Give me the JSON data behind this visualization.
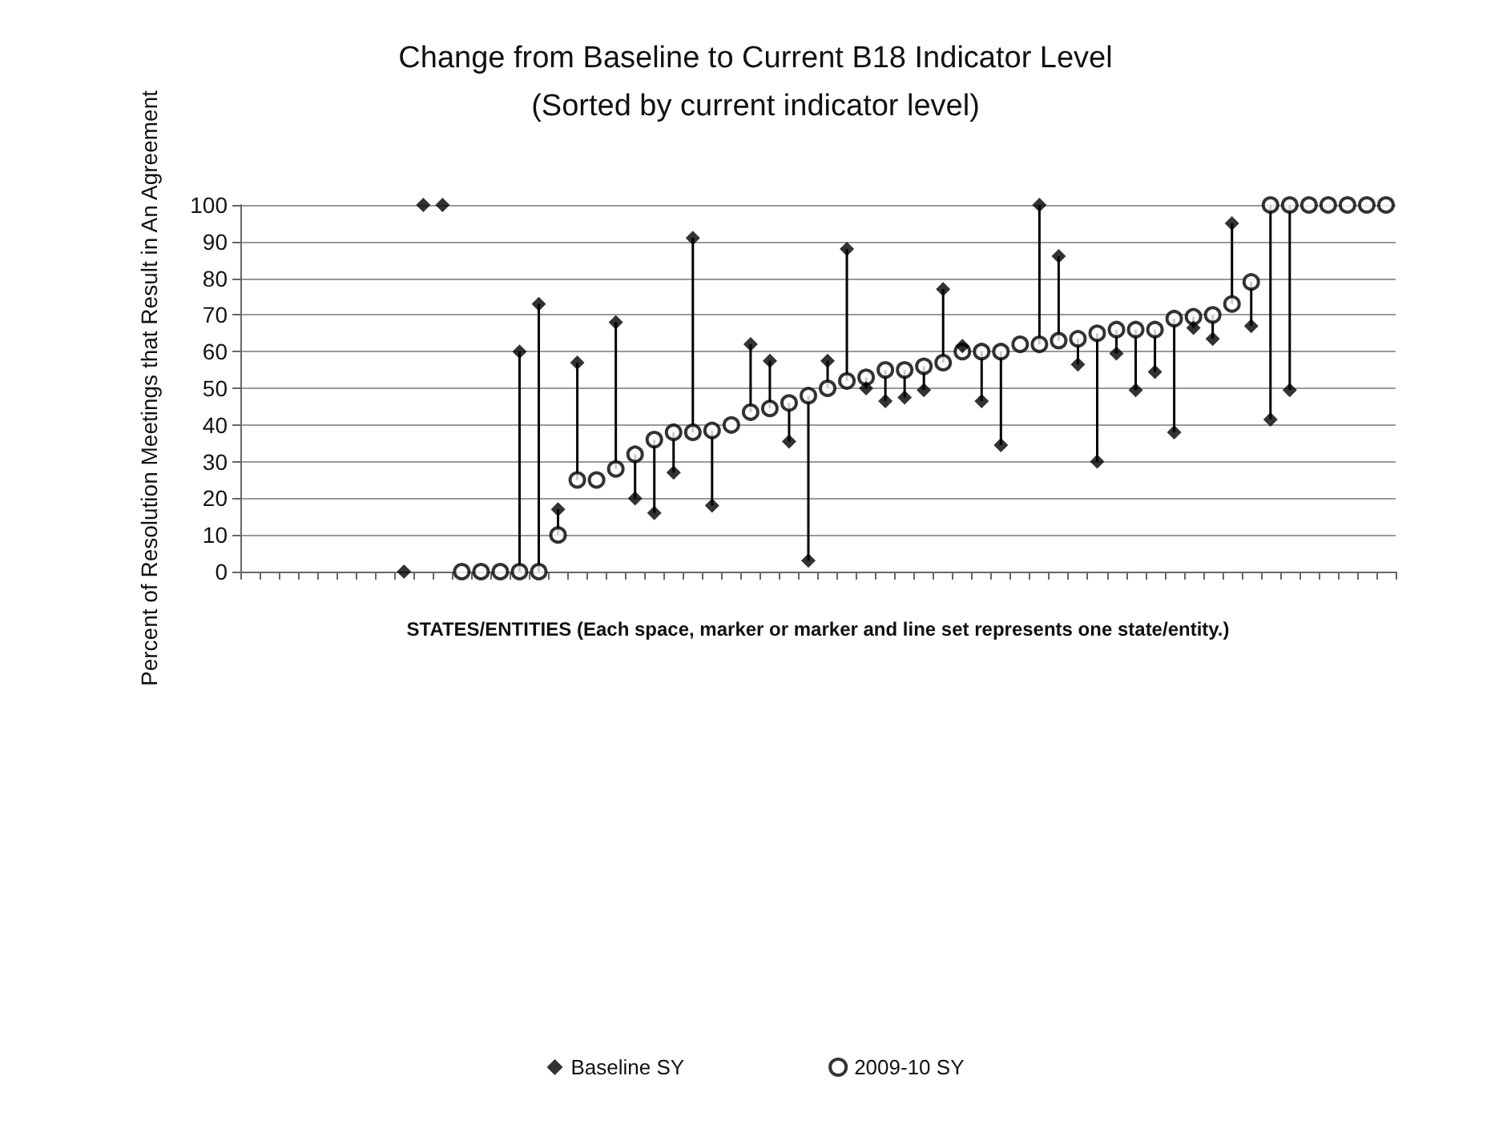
{
  "chart_data": {
    "type": "scatter",
    "title": "Change from Baseline to Current B18 Indicator Level",
    "subtitle": "(Sorted by current indicator level)",
    "xlabel": "STATES/ENTITIES (Each space, marker or marker and line set represents one state/entity.)",
    "ylabel": "Percent of Resolution Meetings that Result in An Agreement",
    "categories": [
      null,
      null,
      null,
      null,
      null,
      null,
      null,
      null,
      null,
      null,
      null,
      null,
      null,
      null,
      null,
      null,
      null,
      null,
      null,
      null,
      null,
      null,
      null,
      null,
      null,
      null,
      null,
      null,
      null,
      null,
      null,
      null,
      null,
      null,
      null,
      null,
      null,
      null,
      null,
      null,
      null,
      null,
      null,
      null,
      null,
      null,
      null,
      null,
      null,
      null,
      null,
      null,
      null,
      null,
      null,
      null,
      null,
      null,
      null,
      null
    ],
    "series": [
      {
        "name": "Baseline SY",
        "color": "#000000",
        "marker": "diamond",
        "values": [
          null,
          null,
          null,
          null,
          null,
          null,
          null,
          null,
          0,
          100,
          100,
          null,
          null,
          null,
          60,
          73,
          17,
          57,
          null,
          68,
          20,
          16,
          27,
          91,
          18,
          null,
          62,
          57.5,
          35.5,
          3,
          57.5,
          88,
          50,
          46.5,
          47.5,
          49.5,
          77,
          61.5,
          46.5,
          34.5,
          null,
          100,
          86,
          56.5,
          30,
          59.5,
          49.5,
          54.5,
          38,
          66.5,
          63.5,
          95,
          67,
          41.5,
          49.5,
          null,
          null,
          null,
          null,
          null
        ]
      },
      {
        "name": "2009-10 SY",
        "color": "#000000",
        "marker": "circle",
        "values": [
          null,
          null,
          null,
          null,
          null,
          null,
          null,
          null,
          null,
          null,
          null,
          0,
          0,
          0,
          0,
          0,
          10,
          25,
          25,
          28,
          32,
          36,
          38,
          38,
          38.5,
          40,
          43.5,
          44.5,
          46,
          48,
          50,
          52,
          53,
          55,
          55,
          56,
          57,
          60,
          60,
          60,
          62,
          62,
          63,
          63.5,
          65,
          66,
          66,
          66,
          69,
          69.5,
          70,
          73,
          79,
          100,
          100,
          100,
          100,
          100,
          100,
          100
        ]
      }
    ],
    "ylim": [
      0,
      100
    ],
    "yticks": [
      0,
      10,
      20,
      30,
      40,
      50,
      60,
      70,
      80,
      90,
      100
    ],
    "grid": "y",
    "legend": "bottom",
    "tick_labels": "y"
  }
}
